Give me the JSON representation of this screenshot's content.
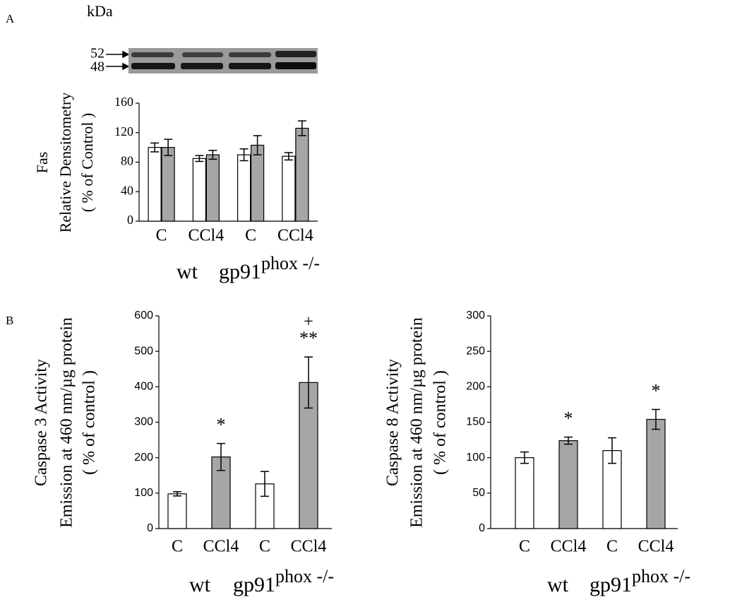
{
  "panel_labels": [
    "A",
    "B"
  ],
  "blot": {
    "unit": "kDa",
    "markers": [
      52,
      48
    ]
  },
  "chart_data": [
    {
      "type": "bar",
      "y_label": [
        "Fas",
        "Relative Densitometry",
        "( % of Control )"
      ],
      "categories": [
        "C",
        "CCl4",
        "C",
        "CCl4"
      ],
      "series": [
        {
          "color": "#ffffff",
          "values": [
            100,
            85,
            90,
            88
          ],
          "errors": [
            6,
            4,
            8,
            5
          ]
        },
        {
          "color": "#a6a6a6",
          "values": [
            100,
            90,
            103,
            126
          ],
          "errors": [
            11,
            6,
            13,
            10
          ]
        }
      ],
      "ylim": [
        0,
        160
      ],
      "yticks": [
        0,
        40,
        80,
        120,
        160
      ],
      "groups": [
        {
          "label": "wt"
        },
        {
          "label": "gp91",
          "superscript": "phox -/-"
        }
      ]
    },
    {
      "type": "bar",
      "y_label": [
        "Caspase 3 Activity",
        "Emission at 460 nm/µg protein",
        "( % of control )"
      ],
      "categories": [
        "C",
        "CCl4",
        "C",
        "CCl4"
      ],
      "values": [
        98,
        202,
        126,
        412
      ],
      "errors": [
        6,
        38,
        35,
        72
      ],
      "colors": [
        "#ffffff",
        "#a6a6a6",
        "#ffffff",
        "#a6a6a6"
      ],
      "annotations": [
        null,
        "*",
        null,
        "**"
      ],
      "annotations_top": [
        null,
        null,
        null,
        "+"
      ],
      "ylim": [
        0,
        600
      ],
      "yticks": [
        0,
        100,
        200,
        300,
        400,
        500,
        600
      ],
      "groups": [
        {
          "label": "wt"
        },
        {
          "label": "gp91",
          "superscript": "phox -/-"
        }
      ]
    },
    {
      "type": "bar",
      "y_label": [
        "Caspase 8 Activity",
        "Emission at 460 nm/µg protein",
        "( % of control )"
      ],
      "categories": [
        "C",
        "CCl4",
        "C",
        "CCl4"
      ],
      "values": [
        100,
        124,
        110,
        154
      ],
      "errors": [
        8,
        5,
        18,
        14
      ],
      "colors": [
        "#ffffff",
        "#a6a6a6",
        "#ffffff",
        "#a6a6a6"
      ],
      "annotations": [
        null,
        "*",
        null,
        "*"
      ],
      "ylim": [
        0,
        300
      ],
      "yticks": [
        0,
        50,
        100,
        150,
        200,
        250,
        300
      ],
      "groups": [
        {
          "label": "wt"
        },
        {
          "label": "gp91",
          "superscript": "phox -/-"
        }
      ]
    }
  ]
}
